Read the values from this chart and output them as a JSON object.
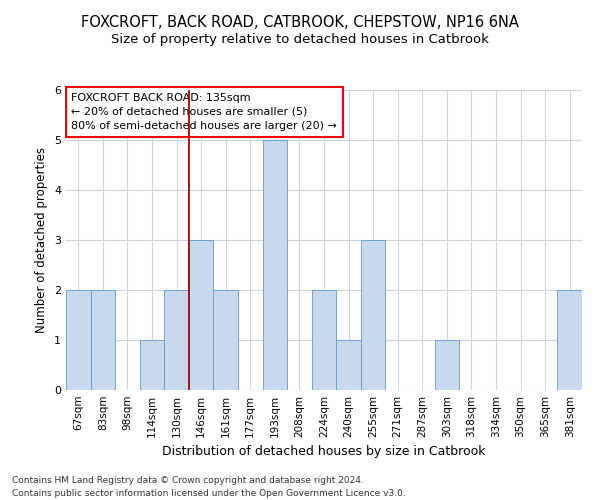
{
  "title": "FOXCROFT, BACK ROAD, CATBROOK, CHEPSTOW, NP16 6NA",
  "subtitle": "Size of property relative to detached houses in Catbrook",
  "xlabel": "Distribution of detached houses by size in Catbrook",
  "ylabel": "Number of detached properties",
  "categories": [
    "67sqm",
    "83sqm",
    "98sqm",
    "114sqm",
    "130sqm",
    "146sqm",
    "161sqm",
    "177sqm",
    "193sqm",
    "208sqm",
    "224sqm",
    "240sqm",
    "255sqm",
    "271sqm",
    "287sqm",
    "303sqm",
    "318sqm",
    "334sqm",
    "350sqm",
    "365sqm",
    "381sqm"
  ],
  "values": [
    2,
    2,
    0,
    1,
    2,
    3,
    2,
    0,
    5,
    0,
    2,
    1,
    3,
    0,
    0,
    1,
    0,
    0,
    0,
    0,
    2
  ],
  "bar_color": "#c8d8ed",
  "bar_edge_color": "#6699cc",
  "ylim": [
    0,
    6
  ],
  "yticks": [
    0,
    1,
    2,
    3,
    4,
    5,
    6
  ],
  "vline_x": 4.5,
  "vline_color": "#aa0000",
  "annotation_title": "FOXCROFT BACK ROAD: 135sqm",
  "annotation_line1": "← 20% of detached houses are smaller (5)",
  "annotation_line2": "80% of semi-detached houses are larger (20) →",
  "footer_line1": "Contains HM Land Registry data © Crown copyright and database right 2024.",
  "footer_line2": "Contains public sector information licensed under the Open Government Licence v3.0.",
  "bg_color": "#ffffff",
  "grid_color": "#ccd5e0",
  "title_fontsize": 10.5,
  "subtitle_fontsize": 9.5,
  "xlabel_fontsize": 9,
  "ylabel_fontsize": 8.5,
  "tick_fontsize": 7.5,
  "annot_fontsize": 8,
  "footer_fontsize": 6.5
}
